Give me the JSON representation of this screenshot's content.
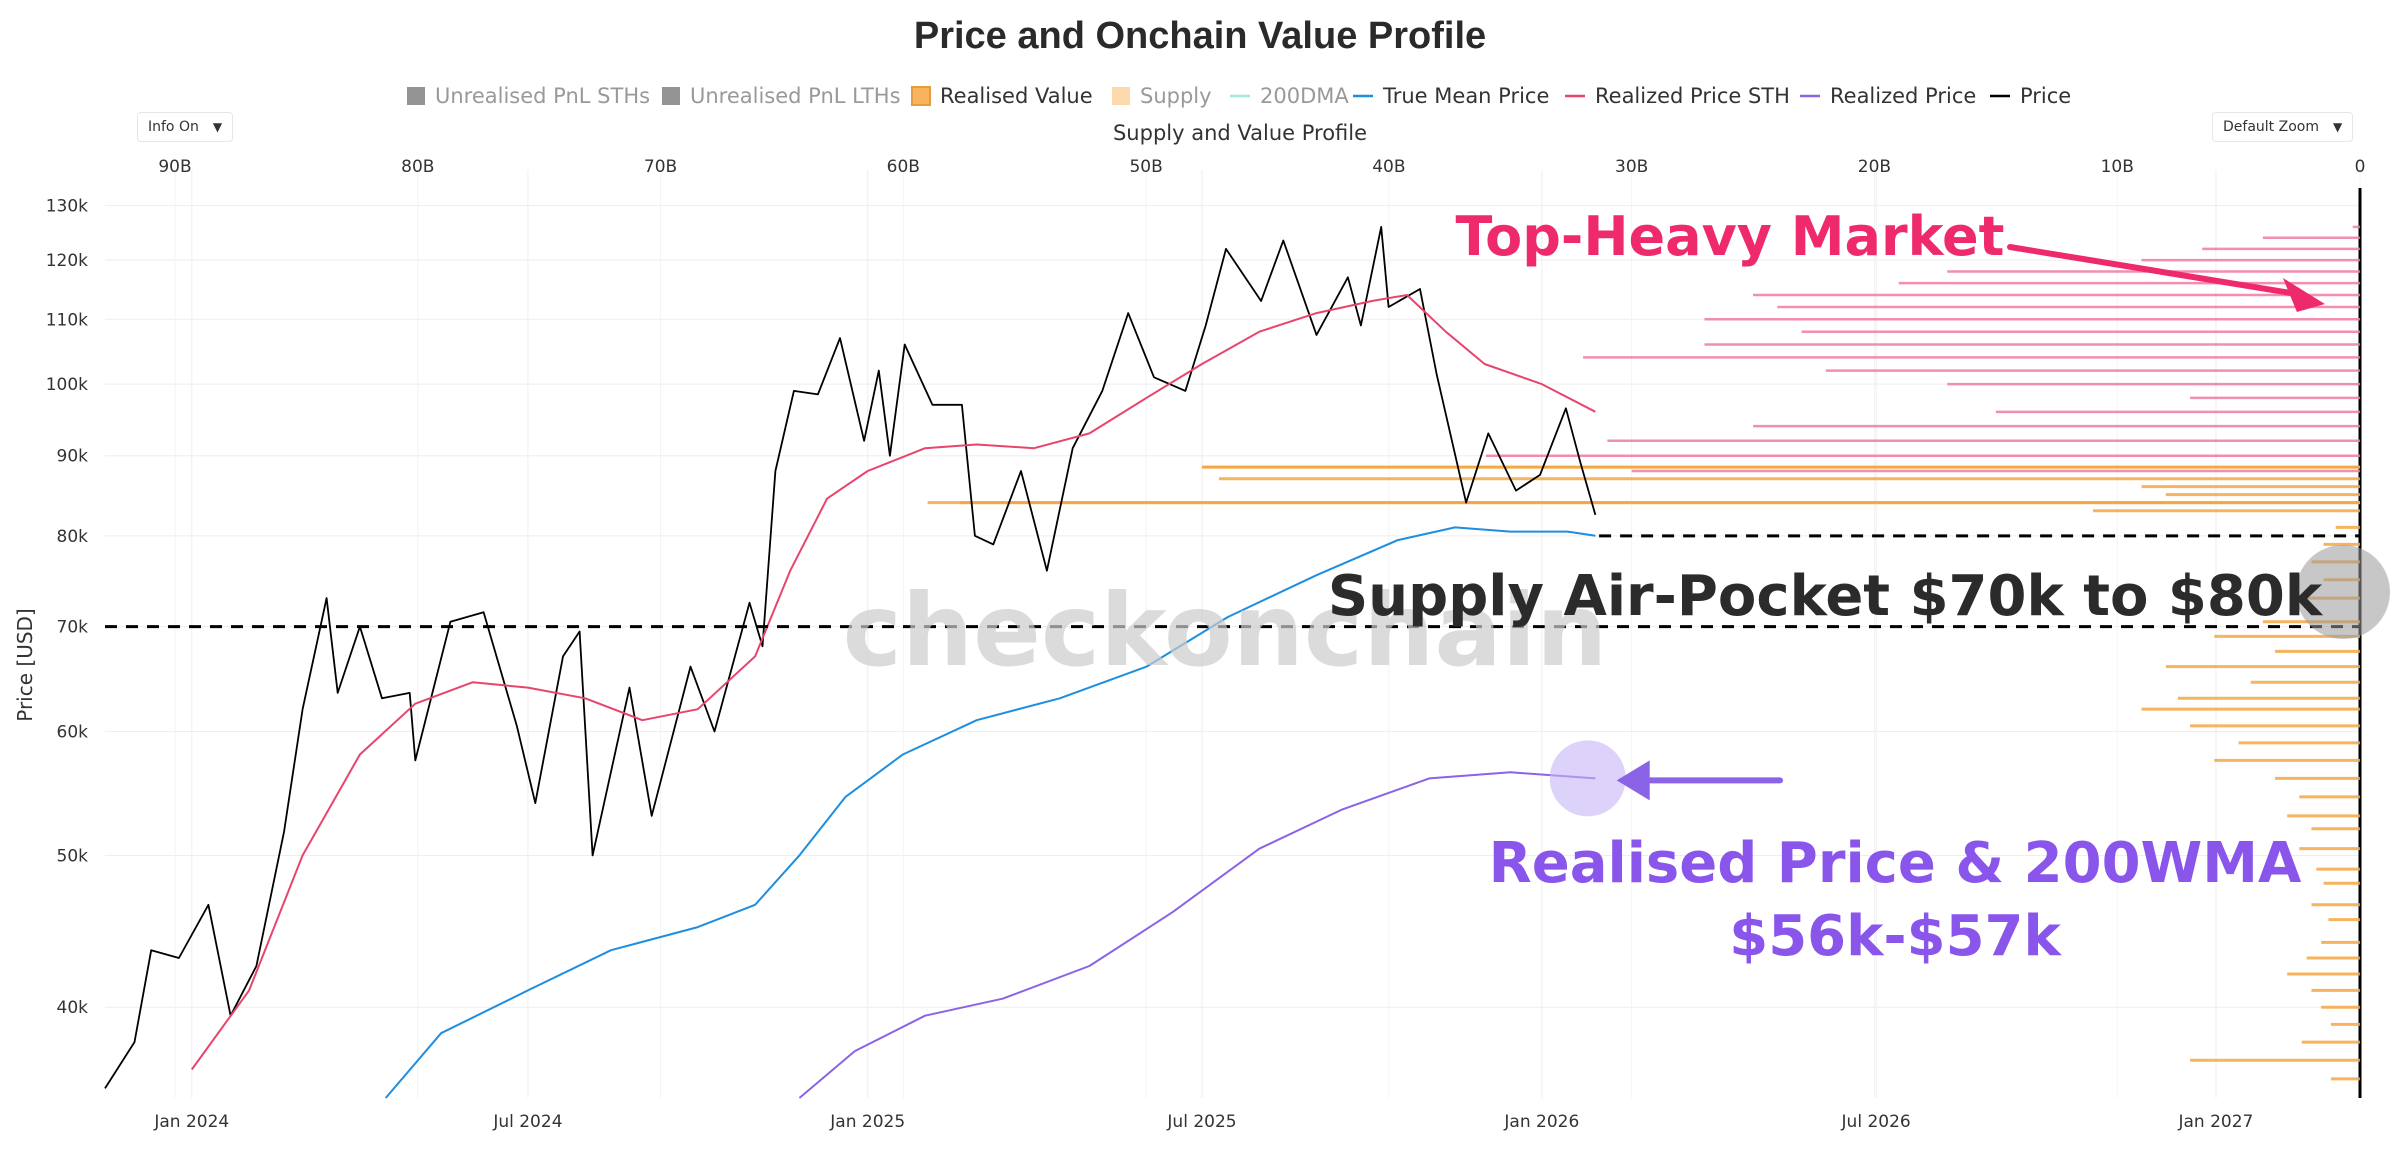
{
  "title": "Price and Onchain Value Profile",
  "legend": [
    {
      "label": "Unrealised PnL STHs",
      "color": "#666666",
      "marker": "square",
      "active": false
    },
    {
      "label": "Unrealised PnL LTHs",
      "color": "#666666",
      "marker": "square",
      "active": false
    },
    {
      "label": "Realised Value",
      "color": "#f5a742",
      "marker": "square-border",
      "active": true
    },
    {
      "label": "Supply",
      "color": "#f9c98a",
      "marker": "square",
      "active": false
    },
    {
      "label": "200DMA",
      "color": "#5dd6c0",
      "marker": "line",
      "active": false
    },
    {
      "label": "True Mean Price",
      "color": "#1e8ee0",
      "marker": "line",
      "active": true
    },
    {
      "label": "Realized Price STH",
      "color": "#e8456d",
      "marker": "line",
      "active": true
    },
    {
      "label": "Realized Price",
      "color": "#8a63e6",
      "marker": "line",
      "active": true
    },
    {
      "label": "Price",
      "color": "#000000",
      "marker": "line",
      "active": true
    }
  ],
  "controls": {
    "info_label": "Info On",
    "zoom_label": "Default Zoom",
    "caret": "▼"
  },
  "watermark": "checkonchain",
  "chart_data": {
    "type": "line",
    "title": "Price and Onchain Value Profile",
    "ylabel": "Price [USD]",
    "y_scale": "log",
    "ylim": [
      35000,
      135000
    ],
    "xlim": [
      "2023-11-15",
      "2027-03-20"
    ],
    "y_ticks": [
      {
        "value": 40000,
        "label": "40k"
      },
      {
        "value": 50000,
        "label": "50k"
      },
      {
        "value": 60000,
        "label": "60k"
      },
      {
        "value": 70000,
        "label": "70k"
      },
      {
        "value": 80000,
        "label": "80k"
      },
      {
        "value": 90000,
        "label": "90k"
      },
      {
        "value": 100000,
        "label": "100k"
      },
      {
        "value": 110000,
        "label": "110k"
      },
      {
        "value": 120000,
        "label": "120k"
      },
      {
        "value": 130000,
        "label": "130k"
      }
    ],
    "x_ticks": [
      {
        "value": "2024-01-01",
        "label": "Jan 2024"
      },
      {
        "value": "2024-07-01",
        "label": "Jul 2024"
      },
      {
        "value": "2025-01-01",
        "label": "Jan 2025"
      },
      {
        "value": "2025-07-01",
        "label": "Jul 2025"
      },
      {
        "value": "2026-01-01",
        "label": "Jan 2026"
      },
      {
        "value": "2026-07-01",
        "label": "Jul 2026"
      },
      {
        "value": "2027-01-01",
        "label": "Jan 2027"
      }
    ],
    "supply_axis": {
      "title": "Supply and Value Profile",
      "range": [
        0,
        90000000000
      ],
      "reversed": true,
      "ticks": [
        {
          "value": 90000000000,
          "label": "90B"
        },
        {
          "value": 80000000000,
          "label": "80B"
        },
        {
          "value": 70000000000,
          "label": "70B"
        },
        {
          "value": 60000000000,
          "label": "60B"
        },
        {
          "value": 50000000000,
          "label": "50B"
        },
        {
          "value": 40000000000,
          "label": "40B"
        },
        {
          "value": 30000000000,
          "label": "30B"
        },
        {
          "value": 20000000000,
          "label": "20B"
        },
        {
          "value": 10000000000,
          "label": "10B"
        },
        {
          "value": 0,
          "label": "0"
        }
      ]
    },
    "series": [
      {
        "name": "Price",
        "color": "#000000",
        "points": [
          [
            "2023-11-15",
            35500
          ],
          [
            "2023-12-01",
            38000
          ],
          [
            "2023-12-10",
            43500
          ],
          [
            "2023-12-25",
            43000
          ],
          [
            "2024-01-10",
            46500
          ],
          [
            "2024-01-22",
            39500
          ],
          [
            "2024-02-05",
            42500
          ],
          [
            "2024-02-20",
            51800
          ],
          [
            "2024-03-01",
            62000
          ],
          [
            "2024-03-14",
            73000
          ],
          [
            "2024-03-20",
            63500
          ],
          [
            "2024-04-01",
            70000
          ],
          [
            "2024-04-13",
            63000
          ],
          [
            "2024-04-28",
            63500
          ],
          [
            "2024-05-01",
            57500
          ],
          [
            "2024-05-20",
            70500
          ],
          [
            "2024-06-07",
            71500
          ],
          [
            "2024-06-25",
            60500
          ],
          [
            "2024-07-05",
            54000
          ],
          [
            "2024-07-20",
            67000
          ],
          [
            "2024-07-29",
            69500
          ],
          [
            "2024-08-05",
            50000
          ],
          [
            "2024-08-25",
            64000
          ],
          [
            "2024-09-06",
            53000
          ],
          [
            "2024-09-27",
            66000
          ],
          [
            "2024-10-10",
            60000
          ],
          [
            "2024-10-29",
            72500
          ],
          [
            "2024-11-05",
            68000
          ],
          [
            "2024-11-12",
            88000
          ],
          [
            "2024-11-22",
            99000
          ],
          [
            "2024-12-05",
            98500
          ],
          [
            "2024-12-17",
            107000
          ],
          [
            "2024-12-30",
            92000
          ],
          [
            "2025-01-07",
            102000
          ],
          [
            "2025-01-13",
            90000
          ],
          [
            "2025-01-21",
            106000
          ],
          [
            "2025-02-05",
            97000
          ],
          [
            "2025-02-21",
            97000
          ],
          [
            "2025-02-28",
            80000
          ],
          [
            "2025-03-10",
            79000
          ],
          [
            "2025-03-25",
            88000
          ],
          [
            "2025-04-08",
            76000
          ],
          [
            "2025-04-22",
            91000
          ],
          [
            "2025-05-08",
            99000
          ],
          [
            "2025-05-22",
            111000
          ],
          [
            "2025-06-05",
            101000
          ],
          [
            "2025-06-22",
            99000
          ],
          [
            "2025-07-03",
            109000
          ],
          [
            "2025-07-14",
            122000
          ],
          [
            "2025-08-02",
            113000
          ],
          [
            "2025-08-14",
            123500
          ],
          [
            "2025-09-01",
            107500
          ],
          [
            "2025-09-18",
            117000
          ],
          [
            "2025-09-25",
            109000
          ],
          [
            "2025-10-06",
            126000
          ],
          [
            "2025-10-10",
            112000
          ],
          [
            "2025-10-27",
            115000
          ],
          [
            "2025-11-05",
            101500
          ],
          [
            "2025-11-21",
            84000
          ],
          [
            "2025-12-03",
            93000
          ],
          [
            "2025-12-18",
            85500
          ],
          [
            "2025-12-31",
            87500
          ],
          [
            "2026-01-14",
            96500
          ],
          [
            "2026-01-22",
            89000
          ],
          [
            "2026-01-30",
            82500
          ]
        ]
      },
      {
        "name": "Realized Price STH",
        "color": "#e8456d",
        "points": [
          [
            "2024-01-01",
            36500
          ],
          [
            "2024-02-01",
            41000
          ],
          [
            "2024-03-01",
            50000
          ],
          [
            "2024-04-01",
            58000
          ],
          [
            "2024-05-01",
            62500
          ],
          [
            "2024-06-01",
            64500
          ],
          [
            "2024-07-01",
            64000
          ],
          [
            "2024-08-01",
            63000
          ],
          [
            "2024-09-01",
            61000
          ],
          [
            "2024-10-01",
            62000
          ],
          [
            "2024-11-01",
            67000
          ],
          [
            "2024-11-20",
            76000
          ],
          [
            "2024-12-10",
            84500
          ],
          [
            "2025-01-01",
            88000
          ],
          [
            "2025-02-01",
            91000
          ],
          [
            "2025-03-01",
            91500
          ],
          [
            "2025-04-01",
            91000
          ],
          [
            "2025-05-01",
            93000
          ],
          [
            "2025-06-01",
            98000
          ],
          [
            "2025-07-01",
            103000
          ],
          [
            "2025-08-01",
            108000
          ],
          [
            "2025-09-01",
            111000
          ],
          [
            "2025-10-01",
            113000
          ],
          [
            "2025-10-20",
            114000
          ],
          [
            "2025-11-10",
            108000
          ],
          [
            "2025-12-01",
            103000
          ],
          [
            "2026-01-01",
            100000
          ],
          [
            "2026-01-30",
            96000
          ]
        ]
      },
      {
        "name": "True Mean Price",
        "color": "#1e8ee0",
        "points": [
          [
            "2024-04-15",
            35000
          ],
          [
            "2024-05-15",
            38500
          ],
          [
            "2024-07-01",
            41000
          ],
          [
            "2024-08-15",
            43500
          ],
          [
            "2024-10-01",
            45000
          ],
          [
            "2024-11-01",
            46500
          ],
          [
            "2024-11-25",
            50000
          ],
          [
            "2024-12-20",
            54500
          ],
          [
            "2025-01-20",
            58000
          ],
          [
            "2025-03-01",
            61000
          ],
          [
            "2025-04-15",
            63000
          ],
          [
            "2025-06-01",
            66000
          ],
          [
            "2025-07-15",
            71000
          ],
          [
            "2025-09-01",
            75500
          ],
          [
            "2025-10-15",
            79500
          ],
          [
            "2025-11-15",
            81000
          ],
          [
            "2025-12-15",
            80500
          ],
          [
            "2026-01-15",
            80500
          ],
          [
            "2026-01-30",
            80000
          ]
        ]
      },
      {
        "name": "Realized Price",
        "color": "#8a63e6",
        "points": [
          [
            "2024-11-25",
            35000
          ],
          [
            "2024-12-25",
            37500
          ],
          [
            "2025-02-01",
            39500
          ],
          [
            "2025-03-15",
            40500
          ],
          [
            "2025-05-01",
            42500
          ],
          [
            "2025-06-15",
            46000
          ],
          [
            "2025-08-01",
            50500
          ],
          [
            "2025-09-15",
            53500
          ],
          [
            "2025-11-01",
            56000
          ],
          [
            "2025-12-15",
            56500
          ],
          [
            "2026-01-30",
            56000
          ]
        ]
      }
    ],
    "reference_lines": [
      {
        "value": 70000,
        "style": "dashed",
        "color": "#000000",
        "extent": "full"
      },
      {
        "value": 80000,
        "style": "dashed",
        "color": "#000000",
        "extent": "right"
      }
    ],
    "hbars_upper": {
      "color": "#f07ba0",
      "note": "Realised value profile by price level (values in billions)",
      "bins": [
        {
          "price": 126000,
          "value": 0.3
        },
        {
          "price": 124000,
          "value": 4.0
        },
        {
          "price": 122000,
          "value": 6.5
        },
        {
          "price": 120000,
          "value": 9.0
        },
        {
          "price": 118000,
          "value": 17.0
        },
        {
          "price": 116000,
          "value": 19.0
        },
        {
          "price": 114000,
          "value": 25.0
        },
        {
          "price": 112000,
          "value": 24.0
        },
        {
          "price": 110000,
          "value": 27.0
        },
        {
          "price": 108000,
          "value": 23.0
        },
        {
          "price": 106000,
          "value": 27.0
        },
        {
          "price": 104000,
          "value": 32.0
        },
        {
          "price": 102000,
          "value": 22.0
        },
        {
          "price": 100000,
          "value": 17.0
        },
        {
          "price": 98000,
          "value": 7.0
        },
        {
          "price": 96000,
          "value": 15.0
        },
        {
          "price": 94000,
          "value": 25.0
        },
        {
          "price": 92000,
          "value": 31.0
        },
        {
          "price": 90000,
          "value": 36.0
        },
        {
          "price": 88000,
          "value": 30.0
        }
      ]
    },
    "hbars_mid": {
      "color": "#f5a742",
      "bins": [
        {
          "price": 87000,
          "value": 47.0
        },
        {
          "price": 86000,
          "value": 9.0
        },
        {
          "price": 85000,
          "value": 8.0
        },
        {
          "price": 84000,
          "value": 59.0
        },
        {
          "price": 83000,
          "value": 11.0
        }
      ]
    },
    "hbars_lower": {
      "color": "#f5a742",
      "bins": [
        {
          "price": 81000,
          "value": 1.0
        },
        {
          "price": 79000,
          "value": 1.5
        },
        {
          "price": 77000,
          "value": 2.0
        },
        {
          "price": 75000,
          "value": 1.5
        },
        {
          "price": 73000,
          "value": 2.5
        },
        {
          "price": 70500,
          "value": 4.0
        },
        {
          "price": 69000,
          "value": 6.0
        },
        {
          "price": 67500,
          "value": 3.5
        },
        {
          "price": 66000,
          "value": 8.0
        },
        {
          "price": 64500,
          "value": 4.5
        },
        {
          "price": 63000,
          "value": 7.5
        },
        {
          "price": 62000,
          "value": 9.0
        },
        {
          "price": 60500,
          "value": 7.0
        },
        {
          "price": 59000,
          "value": 5.0
        },
        {
          "price": 57500,
          "value": 6.0
        },
        {
          "price": 56000,
          "value": 3.5
        },
        {
          "price": 54500,
          "value": 2.5
        },
        {
          "price": 53000,
          "value": 3.0
        },
        {
          "price": 52000,
          "value": 2.0
        },
        {
          "price": 50500,
          "value": 2.5
        },
        {
          "price": 49000,
          "value": 1.8
        },
        {
          "price": 48000,
          "value": 1.5
        },
        {
          "price": 46500,
          "value": 2.0
        },
        {
          "price": 45500,
          "value": 1.3
        },
        {
          "price": 44000,
          "value": 1.6
        },
        {
          "price": 43000,
          "value": 2.2
        },
        {
          "price": 42000,
          "value": 3.0
        },
        {
          "price": 41000,
          "value": 2.0
        },
        {
          "price": 40000,
          "value": 1.6
        },
        {
          "price": 39000,
          "value": 1.2
        },
        {
          "price": 38000,
          "value": 2.4
        },
        {
          "price": 37000,
          "value": 7.0
        },
        {
          "price": 36000,
          "value": 1.2
        }
      ]
    },
    "orange_levels": [
      {
        "value": 88500,
        "from": "2025-07-01"
      },
      {
        "value": 84000,
        "from": "2025-02-20"
      }
    ],
    "annotations": [
      {
        "text": "Top-Heavy Market",
        "color": "#ee2a6d",
        "arrow_to": [
          "2027-03-01",
          112500
        ]
      },
      {
        "text": "Supply Air-Pocket $70k to $80k",
        "color": "#2b2b2b"
      },
      {
        "text": "Realised Price & 200WMA",
        "color": "#8a55ea",
        "arrow_to": [
          "2026-01-28",
          56000
        ]
      },
      {
        "text": "$56k-$57k",
        "color": "#8a55ea"
      }
    ]
  }
}
